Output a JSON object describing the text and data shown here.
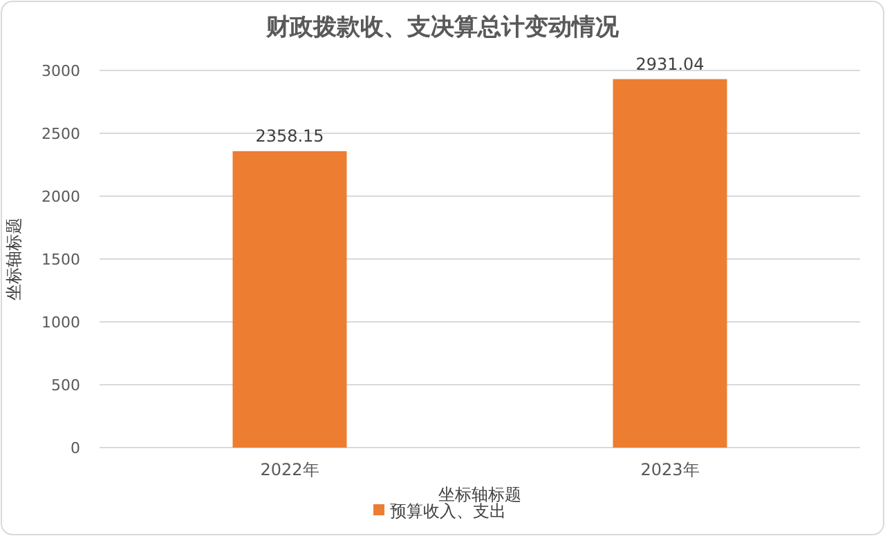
{
  "chart_data": {
    "type": "bar",
    "title": "财政拨款收、支决算总计变动情况",
    "xlabel": "坐标轴标题",
    "ylabel": "坐标轴标题",
    "categories": [
      "2022年",
      "2023年"
    ],
    "series": [
      {
        "name": "预算收入、支出",
        "color": "#ed7d31",
        "values": [
          2358.15,
          2931.04
        ]
      }
    ],
    "ylim": [
      0,
      3000
    ],
    "yticks": [
      0,
      500,
      1000,
      1500,
      2000,
      2500,
      3000
    ],
    "grid": "y",
    "legend": "bottom",
    "data_labels": true
  }
}
